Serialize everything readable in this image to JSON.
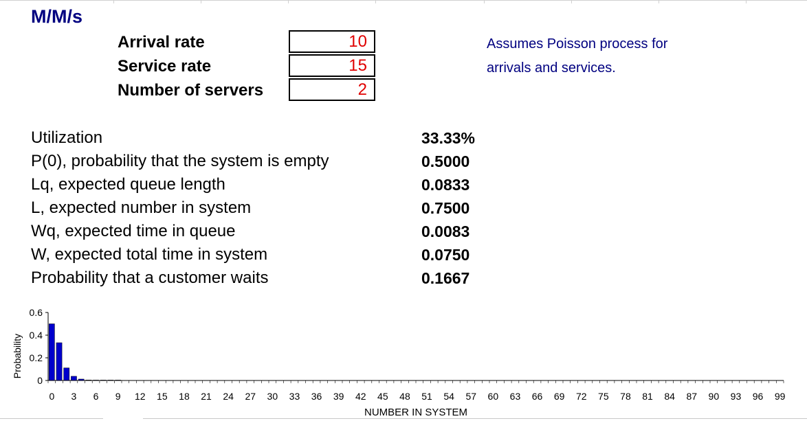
{
  "title": "M/M/s",
  "inputs": [
    {
      "label": "Arrival rate",
      "value": "10"
    },
    {
      "label": "Service rate",
      "value": "15"
    },
    {
      "label": "Number of servers",
      "value": "2"
    }
  ],
  "note": {
    "line1": "Assumes Poisson process for",
    "line2": "arrivals and services."
  },
  "results": [
    {
      "label": "Utilization",
      "value": "33.33%"
    },
    {
      "label": "P(0), probability that the system is empty",
      "value": "0.5000"
    },
    {
      "label": "Lq, expected queue length",
      "value": "0.0833"
    },
    {
      "label": "L, expected number in system",
      "value": "0.7500"
    },
    {
      "label": "Wq, expected time in queue",
      "value": "0.0083"
    },
    {
      "label": "W, expected total time in system",
      "value": "0.0750"
    },
    {
      "label": "Probability that a customer waits",
      "value": "0.1667"
    }
  ],
  "colors": {
    "bar": "#0000cc",
    "title": "#000080",
    "input_value": "#e00000"
  },
  "chart_data": {
    "type": "bar",
    "title": "",
    "xlabel": "NUMBER IN SYSTEM",
    "ylabel": "Probability",
    "ylim": [
      0,
      0.6
    ],
    "yticks": [
      "0",
      "0.2",
      "0.4",
      "0.6"
    ],
    "x_range": [
      0,
      99
    ],
    "xticks": [
      "0",
      "3",
      "6",
      "9",
      "12",
      "15",
      "18",
      "21",
      "24",
      "27",
      "30",
      "33",
      "36",
      "39",
      "42",
      "45",
      "48",
      "51",
      "54",
      "57",
      "60",
      "63",
      "66",
      "69",
      "72",
      "75",
      "78",
      "81",
      "84",
      "87",
      "90",
      "93",
      "96",
      "99"
    ],
    "values": [
      0.5,
      0.3333,
      0.1111,
      0.037,
      0.0123,
      0.0041,
      0.0014,
      0.0005,
      0.0002,
      0.0001
    ]
  }
}
